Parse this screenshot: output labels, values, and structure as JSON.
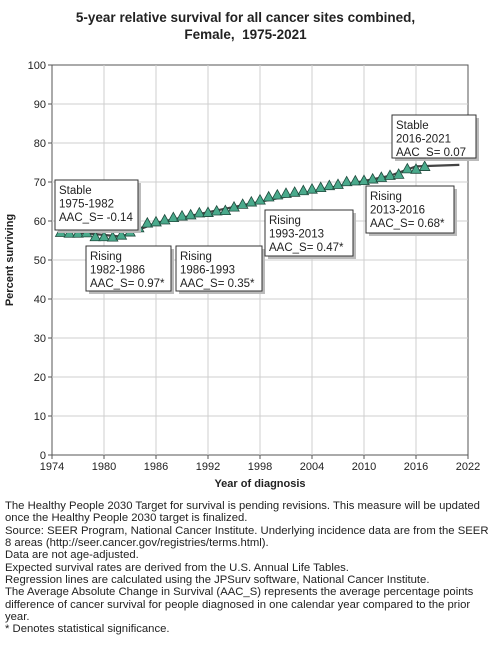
{
  "chart_data": {
    "type": "line",
    "title_lines": [
      "5-year relative survival for all cancer sites combined,",
      "Female,  1975-2021"
    ],
    "xlabel": "Year of diagnosis",
    "ylabel": "Percent surviving",
    "xlim": [
      1974,
      2022
    ],
    "ylim": [
      0,
      100
    ],
    "xticks": [
      1974,
      1980,
      1986,
      1992,
      1998,
      2004,
      2010,
      2016,
      2022
    ],
    "yticks": [
      0,
      10,
      20,
      30,
      40,
      50,
      60,
      70,
      80,
      90,
      100
    ],
    "grid": true,
    "series": [
      {
        "marker": "triangle",
        "color": "#4aaa8c",
        "x": [
          1975,
          1976,
          1977,
          1978,
          1979,
          1980,
          1981,
          1982,
          1983,
          1984,
          1985,
          1986,
          1987,
          1988,
          1989,
          1990,
          1991,
          1992,
          1993,
          1994,
          1995,
          1996,
          1997,
          1998,
          1999,
          2000,
          2001,
          2002,
          2003,
          2004,
          2005,
          2006,
          2007,
          2008,
          2009,
          2010,
          2011,
          2012,
          2013,
          2014,
          2015,
          2016,
          2017
        ],
        "y": [
          57.1,
          56.9,
          56.9,
          57.0,
          56.0,
          56.0,
          55.9,
          56.4,
          57.2,
          58.3,
          59.5,
          59.8,
          60.3,
          60.9,
          61.3,
          61.6,
          62.1,
          62.2,
          62.6,
          62.7,
          63.6,
          64.3,
          64.9,
          65.4,
          66.2,
          66.7,
          67.1,
          67.4,
          67.8,
          68.2,
          68.6,
          69.1,
          69.4,
          70.1,
          70.3,
          70.4,
          70.8,
          71.2,
          71.7,
          72.0,
          73.4,
          73.3,
          74.0
        ]
      },
      {
        "color": "#444444",
        "segments": [
          {
            "x": [
              1975,
              1982
            ],
            "y": [
              57.5,
              56.0
            ]
          },
          {
            "x": [
              1982,
              1986
            ],
            "y": [
              56.0,
              59.5
            ]
          },
          {
            "x": [
              1986,
              1993
            ],
            "y": [
              59.5,
              62.7
            ]
          },
          {
            "x": [
              1993,
              2013
            ],
            "y": [
              62.7,
              71.6
            ]
          },
          {
            "x": [
              2013,
              2016
            ],
            "y": [
              71.6,
              74.0
            ]
          },
          {
            "x": [
              2016,
              2021
            ],
            "y": [
              74.0,
              74.4
            ]
          }
        ]
      }
    ],
    "annotations": [
      {
        "lines": [
          "Stable",
          "1975-1982",
          "AAC_S= -0.14"
        ]
      },
      {
        "lines": [
          "Rising",
          "1982-1986",
          "AAC_S=  0.97*"
        ]
      },
      {
        "lines": [
          "Rising",
          "1986-1993",
          "AAC_S=  0.35*"
        ]
      },
      {
        "lines": [
          "Rising",
          "1993-2013",
          "AAC_S=  0.47*"
        ]
      },
      {
        "lines": [
          "Rising",
          "2013-2016",
          "AAC_S=  0.68*"
        ]
      },
      {
        "lines": [
          "Stable",
          "2016-2021",
          "AAC_S=  0.07"
        ]
      }
    ]
  },
  "notes": [
    "The Healthy People 2030 Target for survival is pending revisions. This measure will be updated once the Healthy People 2030 target is finalized.",
    "Source: SEER Program, National Cancer Institute. Underlying incidence data are from the SEER 8 areas (http://seer.cancer.gov/registries/terms.html).",
    "Data are not age-adjusted.",
    "Expected survival rates are derived from the U.S. Annual Life Tables.",
    "Regression lines are calculated using the JPSurv software, National Cancer Institute.",
    "The Average Absolute Change in Survival (AAC_S) represents the average percentage points difference of cancer survival for people diagnosed in one calendar year compared to the prior year.",
    "* Denotes statistical significance."
  ]
}
